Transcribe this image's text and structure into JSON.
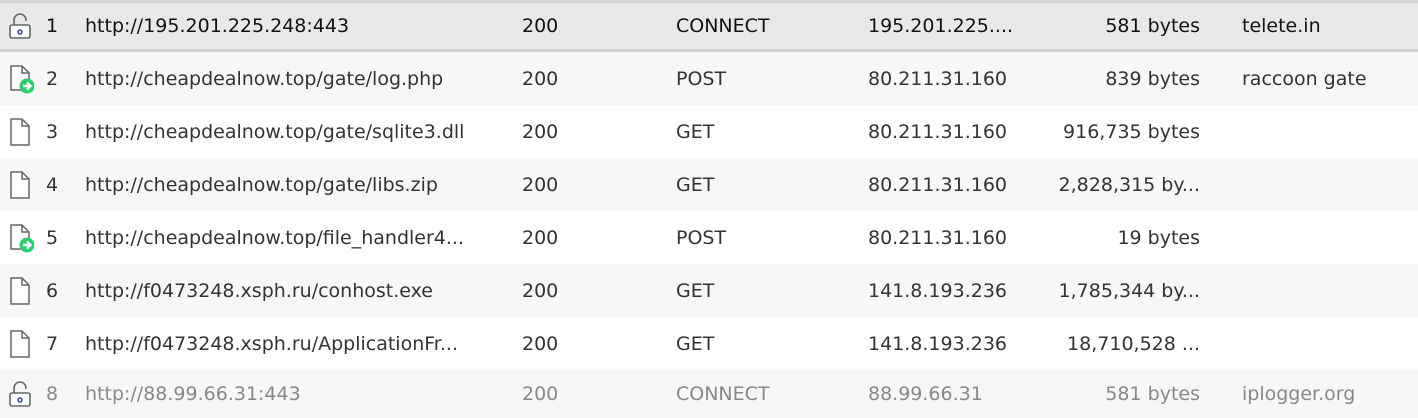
{
  "rows": [
    {
      "num": "1",
      "url": "http://195.201.225.248:443",
      "status": "200",
      "method": "CONNECT",
      "ip": "195.201.225....",
      "size": "581 bytes",
      "comment": "telete.in",
      "icon": "lock-open-icon"
    },
    {
      "num": "2",
      "url": "http://cheapdealnow.top/gate/log.php",
      "status": "200",
      "method": "POST",
      "ip": "80.211.31.160",
      "size": "839 bytes",
      "comment": "raccoon gate",
      "icon": "document-upload-icon"
    },
    {
      "num": "3",
      "url": "http://cheapdealnow.top/gate/sqlite3.dll",
      "status": "200",
      "method": "GET",
      "ip": "80.211.31.160",
      "size": "916,735 bytes",
      "comment": "",
      "icon": "document-icon"
    },
    {
      "num": "4",
      "url": "http://cheapdealnow.top/gate/libs.zip",
      "status": "200",
      "method": "GET",
      "ip": "80.211.31.160",
      "size": "2,828,315 by...",
      "comment": "",
      "icon": "document-icon"
    },
    {
      "num": "5",
      "url": "http://cheapdealnow.top/file_handler4...",
      "status": "200",
      "method": "POST",
      "ip": "80.211.31.160",
      "size": "19 bytes",
      "comment": "",
      "icon": "document-upload-icon"
    },
    {
      "num": "6",
      "url": "http://f0473248.xsph.ru/conhost.exe",
      "status": "200",
      "method": "GET",
      "ip": "141.8.193.236",
      "size": "1,785,344 by...",
      "comment": "",
      "icon": "document-icon"
    },
    {
      "num": "7",
      "url": "http://f0473248.xsph.ru/ApplicationFr...",
      "status": "200",
      "method": "GET",
      "ip": "141.8.193.236",
      "size": "18,710,528 ...",
      "comment": "",
      "icon": "document-icon"
    },
    {
      "num": "8",
      "url": "http://88.99.66.31:443",
      "status": "200",
      "method": "CONNECT",
      "ip": "88.99.66.31",
      "size": "581 bytes",
      "comment": "iplogger.org",
      "icon": "lock-open-icon"
    }
  ],
  "colors": {
    "selected_bg": "#e8e8e8",
    "alt_bg": "#f7f7f7",
    "arrow_badge": "#2ecc71",
    "lock_dot": "#3b4cc0"
  }
}
